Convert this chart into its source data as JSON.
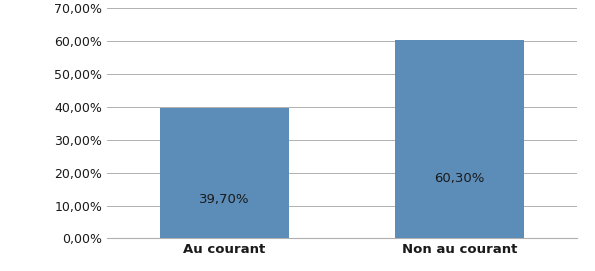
{
  "categories": [
    "Au courant",
    "Non au courant"
  ],
  "values": [
    39.7,
    60.3
  ],
  "bar_color": "#5B8DB8",
  "bar_labels": [
    "39,70%",
    "60,30%"
  ],
  "ylim": [
    0,
    70
  ],
  "yticks": [
    0,
    10,
    20,
    30,
    40,
    50,
    60,
    70
  ],
  "ytick_labels": [
    "0,00%",
    "10,00%",
    "20,00%",
    "30,00%",
    "40,00%",
    "50,00%",
    "60,00%",
    "70,00%"
  ],
  "bar_width": 0.55,
  "bar_label_fontsize": 9.5,
  "tick_fontsize": 9,
  "xtick_fontsize": 9.5,
  "background_color": "#ffffff",
  "grid_color": "#b0b0b0",
  "label_color": "#1a1a1a",
  "x_positions": [
    0.5,
    1.5
  ],
  "xlim": [
    0,
    2
  ]
}
